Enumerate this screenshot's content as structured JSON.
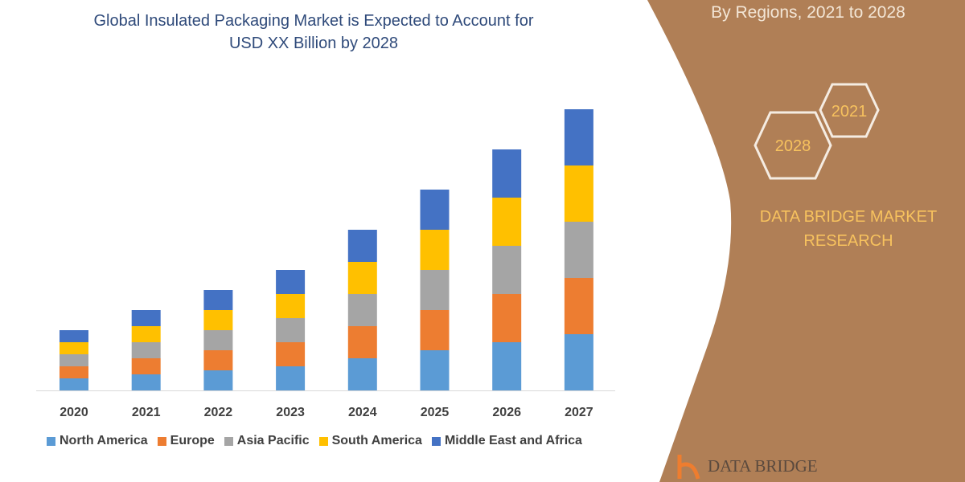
{
  "title_lines": [
    "Global Insulated Packaging Market is Expected to Account for",
    "USD XX Billion by 2028"
  ],
  "side_panel": {
    "subtitle": "By Regions, 2021 to 2028",
    "hex_labels": [
      "2021",
      "2028"
    ],
    "brand_lines": [
      "DATA BRIDGE MARKET",
      "RESEARCH"
    ],
    "logo_text": "DATA BRIDGE",
    "color": "#b07f56"
  },
  "chart_data": {
    "type": "bar",
    "stacked": true,
    "title": "Global Insulated Packaging Market is Expected to Account for USD XX Billion by 2028",
    "xlabel": "",
    "ylabel": "",
    "y_axis_shown": false,
    "grid": false,
    "legend_position": "bottom",
    "categories": [
      "2020",
      "2021",
      "2022",
      "2023",
      "2024",
      "2025",
      "2026",
      "2027"
    ],
    "series": [
      {
        "name": "North America",
        "color": "#5b9bd5",
        "values": [
          15,
          20,
          25,
          30,
          40,
          50,
          60,
          70
        ]
      },
      {
        "name": "Europe",
        "color": "#ed7d31",
        "values": [
          15,
          20,
          25,
          30,
          40,
          50,
          60,
          70
        ]
      },
      {
        "name": "Asia Pacific",
        "color": "#a5a5a5",
        "values": [
          15,
          20,
          25,
          30,
          40,
          50,
          60,
          70
        ]
      },
      {
        "name": "South America",
        "color": "#ffc000",
        "values": [
          15,
          20,
          25,
          30,
          40,
          50,
          60,
          70
        ]
      },
      {
        "name": "Middle East and Africa",
        "color": "#4472c4",
        "values": [
          15,
          20,
          25,
          30,
          40,
          50,
          60,
          70
        ]
      }
    ]
  }
}
